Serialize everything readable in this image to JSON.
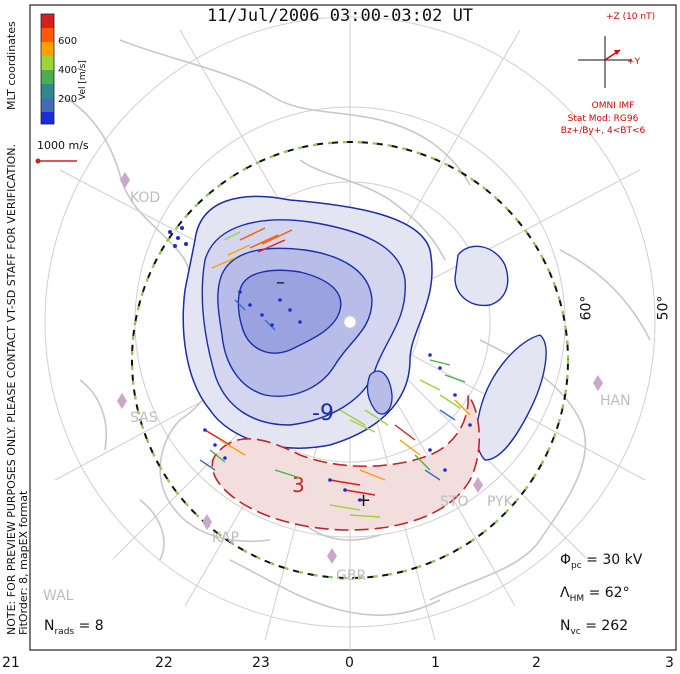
{
  "title": "11/Jul/2006 03:00-03:02 UT",
  "side_notes": {
    "coords": "MLT coordinates",
    "preview": "NOTE: FOR PREVIEW PURPOSES ONLY. PLEASE CONTACT VT-SD STAFF FOR VERIFICATION.",
    "fit": "FitOrder: 8, mapEX format"
  },
  "colorbar": {
    "label": "Vel [m/s]",
    "ticks": [
      "600",
      "400",
      "200"
    ],
    "colors": [
      "#d71f1f",
      "#ff5a00",
      "#ffa000",
      "#9cd43c",
      "#4cae4c",
      "#2f8a8a",
      "#3f6db8",
      "#1c2bd8"
    ]
  },
  "scale": {
    "label": "1000 m/s"
  },
  "imf": {
    "z_label": "+Z (10 nT)",
    "y_label": "+Y",
    "source": "OMNI IMF",
    "model": "Stat Mod: RG96",
    "condition": "Bz+/By+, 4<BT<6"
  },
  "stations": [
    "KOD",
    "SAS",
    "KAP",
    "WAL",
    "GBR",
    "STO",
    "PYK",
    "HAN"
  ],
  "latitudes": [
    "60°",
    "50°"
  ],
  "mlt_ticks": [
    "21",
    "22",
    "23",
    "0",
    "1",
    "2",
    "3"
  ],
  "contours": {
    "neg_label": "-9",
    "pos_label": "3",
    "min_marker": "–",
    "max_marker": "+"
  },
  "stats": {
    "phi_symbol": "Φ",
    "phi_sub": "pc",
    "phi_val": "= 30 kV",
    "lam_symbol": "Λ",
    "lam_sub": "HM",
    "lam_val": "= 62°",
    "nvc_symbol": "N",
    "nvc_sub": "vc",
    "nvc_val": "= 262",
    "nrads_symbol": "N",
    "nrads_sub": "rads",
    "nrads_val": "= 8"
  }
}
